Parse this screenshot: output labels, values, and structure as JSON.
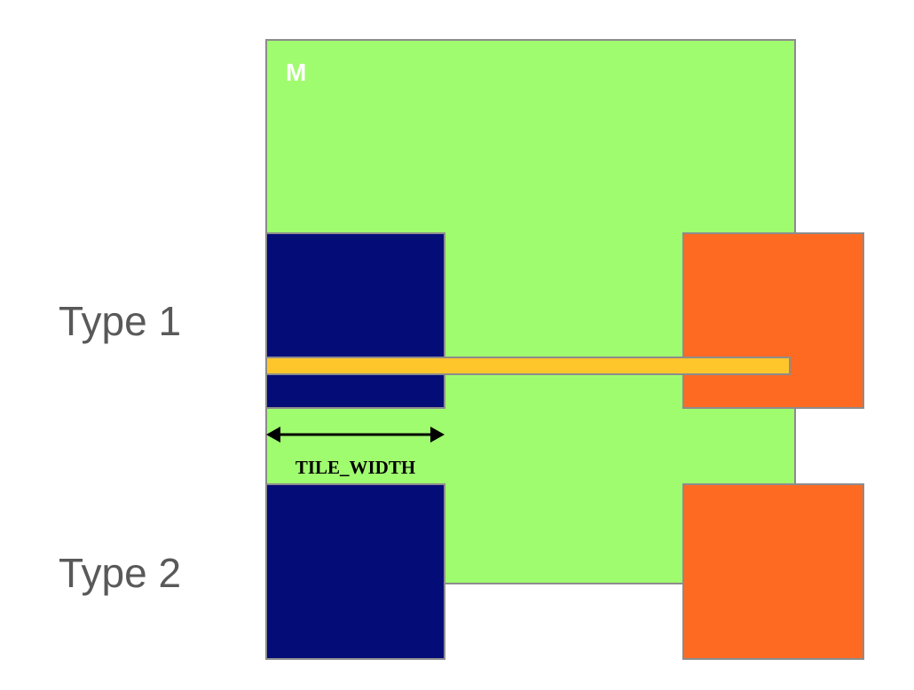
{
  "matrix": {
    "label": "M",
    "fill": "#a0fc6f",
    "label_color": "#ffffff"
  },
  "rows": [
    {
      "label": "Type 1"
    },
    {
      "label": "Type 2"
    }
  ],
  "tile_width_label": "TILE_WIDTH",
  "colors": {
    "tile_left": "#040c78",
    "tile_right": "#ff6a22",
    "strip": "#ffc62c",
    "row_label_text": "#595959",
    "arrow": "#000000",
    "outline": "#8c8c8c"
  }
}
